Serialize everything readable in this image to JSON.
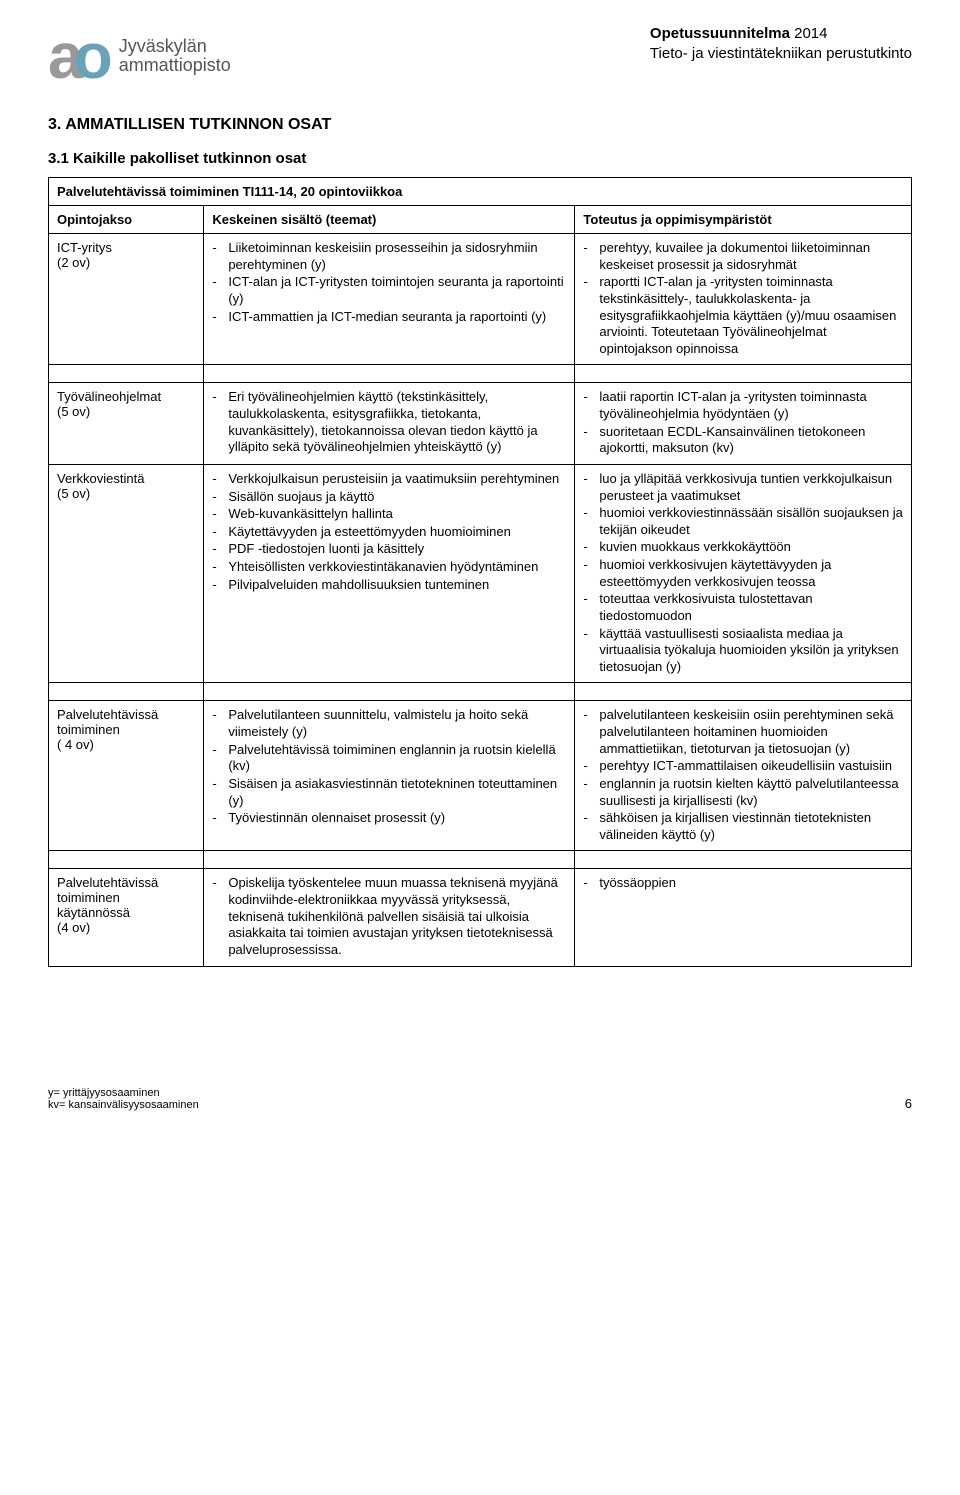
{
  "header": {
    "logo_a": "a",
    "logo_o": "o",
    "logo_line1": "Jyväskylän",
    "logo_line2": "ammattiopisto",
    "right_line1_bold": "Opetussuunnitelma",
    "right_line1_rest": " 2014",
    "right_line2": "Tieto- ja viestintätekniikan perustutkinto"
  },
  "section_title": "3. AMMATILLISEN TUTKINNON OSAT",
  "subsection_title": "3.1 Kaikille pakolliset tutkinnon osat",
  "table": {
    "caption": "Palvelutehtävissä toimiminen TI111-14, 20 opintoviikkoa",
    "headers": [
      "Opintojakso",
      "Keskeinen sisältö (teemat)",
      "Toteutus ja oppimisympäristöt"
    ],
    "groups": [
      {
        "rows": [
          {
            "c1": "ICT-yritys\n(2 ov)",
            "c2": [
              "Liiketoiminnan keskeisiin prosesseihin ja sidosryhmiin perehtyminen (y)",
              "ICT-alan ja ICT-yritysten toimintojen seuranta ja raportointi (y)",
              "ICT-ammattien ja ICT-median seuranta ja raportointi (y)"
            ],
            "c3": [
              "perehtyy, kuvailee ja dokumentoi liiketoiminnan keskeiset prosessit ja sidosryhmät",
              "raportti ICT-alan ja -yritysten toiminnasta tekstinkäsittely-, taulukkolaskenta- ja esitysgrafiikkaohjelmia käyttäen (y)/muu osaamisen arviointi. Toteutetaan Työvälineohjelmat opintojakson opinnoissa"
            ]
          }
        ]
      },
      {
        "rows": [
          {
            "c1": "Työvälineohjelmat\n(5 ov)",
            "c2": [
              "Eri työvälineohjelmien käyttö (tekstinkäsittely, taulukkolaskenta, esitysgrafiikka, tietokanta, kuvankäsittely), tietokannoissa olevan tiedon käyttö ja ylläpito sekä työvälineohjelmien yhteiskäyttö (y)"
            ],
            "c3": [
              "laatii raportin ICT-alan ja -yritysten toiminnasta työvälineohjelmia hyödyntäen (y)",
              "suoritetaan ECDL-Kansainvälinen tietokoneen ajokortti, maksuton (kv)"
            ]
          },
          {
            "c1": "Verkkoviestintä\n(5 ov)",
            "c2": [
              "Verkkojulkaisun perusteisiin ja vaatimuksiin perehtyminen",
              "Sisällön suojaus ja käyttö",
              "Web-kuvankäsittelyn hallinta",
              "Käytettävyyden ja esteettömyyden huomioiminen",
              "PDF -tiedostojen luonti ja käsittely",
              "Yhteisöllisten verkkoviestintäkanavien hyödyntäminen",
              "Pilvipalveluiden mahdollisuuksien tunteminen"
            ],
            "c3": [
              "luo ja ylläpitää verkkosivuja tuntien verkkojulkaisun perusteet ja vaatimukset",
              "huomioi verkkoviestinnässään sisällön suojauksen ja tekijän oikeudet",
              "kuvien muokkaus verkkokäyttöön",
              "huomioi verkkosivujen käytettävyyden ja esteettömyyden verkkosivujen teossa",
              "toteuttaa verkkosivuista tulostettavan tiedostomuodon",
              "käyttää vastuullisesti sosiaalista mediaa ja virtuaalisia työkaluja huomioiden yksilön ja yrityksen tietosuojan (y)"
            ]
          }
        ]
      },
      {
        "rows": [
          {
            "c1": "Palvelutehtävissä toimiminen\n( 4 ov)",
            "c2": [
              "Palvelutilanteen suunnittelu, valmistelu ja hoito sekä viimeistely (y)",
              "Palvelutehtävissä toimiminen englannin ja ruotsin kielellä (kv)",
              "Sisäisen ja asiakasviestinnän tietotekninen toteuttaminen (y)",
              "Työviestinnän olennaiset prosessit (y)"
            ],
            "c3": [
              "palvelutilanteen keskeisiin osiin perehtyminen sekä palvelutilanteen hoitaminen huomioiden ammattietiikan, tietoturvan ja tietosuojan (y)",
              "perehtyy ICT-ammattilaisen oikeudellisiin vastuisiin",
              "englannin ja ruotsin kielten käyttö palvelutilanteessa suullisesti ja kirjallisesti (kv)",
              "sähköisen ja kirjallisen viestinnän tietoteknisten välineiden käyttö (y)"
            ]
          }
        ]
      },
      {
        "rows": [
          {
            "c1": "Palvelutehtävissä toimiminen käytännössä\n(4 ov)",
            "c2": [
              "Opiskelija työskentelee muun muassa teknisenä myyjänä kodinviihde-elektroniikkaa myyvässä yrityksessä, teknisenä tukihenkilönä palvellen sisäisiä tai ulkoisia asiakkaita tai toimien avustajan yrityksen tietoteknisessä palveluprosessissa."
            ],
            "c3": [
              "työssäoppien"
            ]
          }
        ]
      }
    ]
  },
  "footer": {
    "line1": "y= yrittäjyysosaaminen",
    "line2": "kv= kansainvälisyysosaaminen",
    "page": "6"
  }
}
